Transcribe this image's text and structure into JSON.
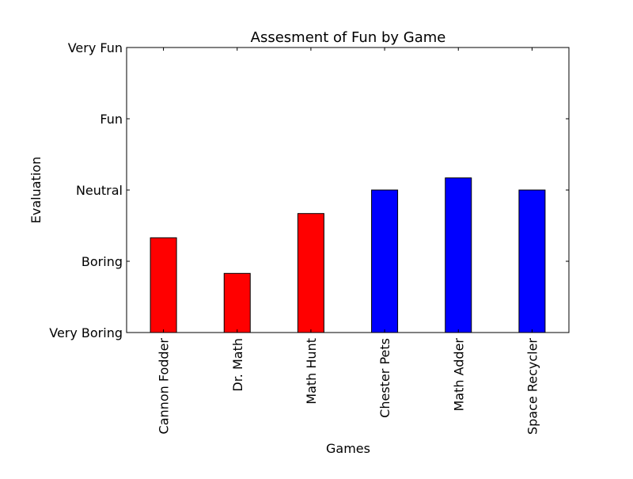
{
  "chart_data": {
    "type": "bar",
    "title": "Assesment of Fun by Game",
    "xlabel": "Games",
    "ylabel": "Evaluation",
    "categories": [
      "Cannon Fodder",
      "Dr. Math",
      "Math Hunt",
      "Chester Pets",
      "Math Adder",
      "Space Recycler"
    ],
    "values": [
      2.33,
      1.83,
      2.67,
      3.0,
      3.17,
      3.0
    ],
    "bar_colors": [
      "#ff0000",
      "#ff0000",
      "#ff0000",
      "#0000ff",
      "#0000ff",
      "#0000ff"
    ],
    "ylim": [
      1,
      5
    ],
    "y_ticks": [
      {
        "value": 1,
        "label": "Very Boring"
      },
      {
        "value": 2,
        "label": "Boring"
      },
      {
        "value": 3,
        "label": "Neutral"
      },
      {
        "value": 4,
        "label": "Fun"
      },
      {
        "value": 5,
        "label": "Very Fun"
      }
    ],
    "grid": false,
    "legend": "none",
    "x_tick_rotation": "vertical"
  }
}
